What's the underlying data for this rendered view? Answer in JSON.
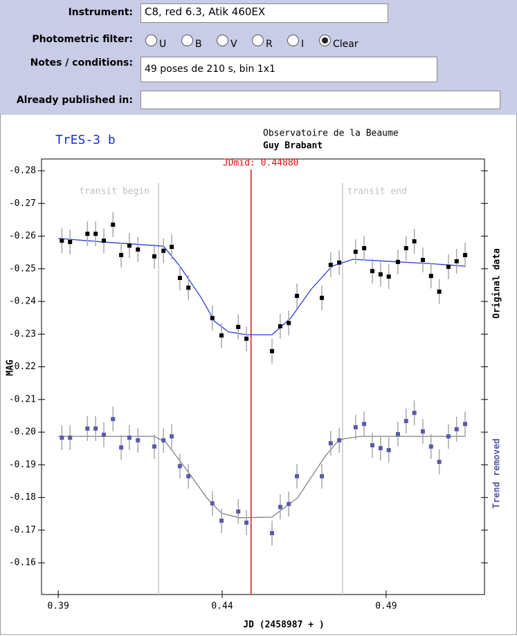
{
  "form": {
    "instrument": {
      "label": "Instrument:",
      "value": "C8, red 6.3, Atik 460EX"
    },
    "filter": {
      "label": "Photometric filter:",
      "options": [
        {
          "label": "U",
          "checked": false
        },
        {
          "label": "B",
          "checked": false
        },
        {
          "label": "V",
          "checked": false
        },
        {
          "label": "R",
          "checked": false
        },
        {
          "label": "I",
          "checked": false
        },
        {
          "label": "Clear",
          "checked": true
        }
      ]
    },
    "notes": {
      "label": "Notes / conditions:",
      "value": "49 poses de 210 s, bin 1x1"
    },
    "published": {
      "label": "Already published in:"
    }
  },
  "chart_data": {
    "type": "scatter",
    "title": "TrES-3 b",
    "observatory": "Observatoire de la Beaume",
    "observer": "Guy Brabant",
    "xlabel": "JD (2458987 + )",
    "ylabel": "MAG",
    "xlim": [
      0.3849,
      0.52
    ],
    "xticks": [
      0.39,
      0.44,
      0.49
    ],
    "ylim": [
      -0.1503,
      -0.2836
    ],
    "yticks": [
      -0.28,
      -0.27,
      -0.26,
      -0.25,
      -0.24,
      -0.23,
      -0.22,
      -0.21,
      {
        "value": -0.2,
        "label": "-0.20"
      },
      -0.19,
      -0.18,
      -0.17,
      -0.16
    ],
    "transit_begin": {
      "value": 0.4206,
      "label": "transit begin"
    },
    "transit_end": {
      "value": 0.4767,
      "label": "transit end"
    },
    "jdmid": {
      "value": 0.4488,
      "label": "JDmid: 0.44880",
      "color": "#e01010"
    },
    "x": [
      0.3911,
      0.3936,
      0.3989,
      0.4014,
      0.4039,
      0.4067,
      0.4092,
      0.4117,
      0.4143,
      0.4193,
      0.4221,
      0.4246,
      0.4271,
      0.4297,
      0.437,
      0.4398,
      0.4449,
      0.4474,
      0.4552,
      0.4577,
      0.4603,
      0.4628,
      0.4704,
      0.4731,
      0.4757,
      0.4807,
      0.4833,
      0.4858,
      0.4883,
      0.4908,
      0.4936,
      0.4961,
      0.4986,
      0.5012,
      0.5037,
      0.5062,
      0.509,
      0.5115,
      0.5141
    ],
    "series": [
      {
        "name": "Original data",
        "color": "#000000",
        "error": 0.0038,
        "values": [
          -0.2586,
          -0.2582,
          -0.2607,
          -0.2607,
          -0.2586,
          -0.2635,
          -0.2542,
          -0.2571,
          -0.2559,
          -0.2538,
          -0.2555,
          -0.2567,
          -0.2472,
          -0.2442,
          -0.2349,
          -0.2296,
          -0.2322,
          -0.2286,
          -0.2248,
          -0.2324,
          -0.2334,
          -0.2417,
          -0.2411,
          -0.2512,
          -0.2519,
          -0.2552,
          -0.2563,
          -0.2493,
          -0.2483,
          -0.2476,
          -0.2521,
          -0.2563,
          -0.2584,
          -0.2527,
          -0.2478,
          -0.243,
          -0.2506,
          -0.2523,
          -0.2542
        ],
        "fit": {
          "color": "#2a3bd8",
          "x": [
            0.39,
            0.4039,
            0.4221,
            0.4271,
            0.4335,
            0.4377,
            0.4419,
            0.4474,
            0.4552,
            0.4609,
            0.4672,
            0.4735,
            0.4799,
            0.4904,
            0.5031,
            0.5141
          ],
          "values": [
            -0.2593,
            -0.2582,
            -0.2569,
            -0.2508,
            -0.2413,
            -0.2339,
            -0.2307,
            -0.2298,
            -0.2298,
            -0.2349,
            -0.2438,
            -0.2508,
            -0.2529,
            -0.2523,
            -0.2516,
            -0.2508
          ]
        }
      },
      {
        "name": "Trend removed",
        "color": "#5a5aa8",
        "error": 0.0038,
        "values": [
          -0.1983,
          -0.1983,
          -0.2011,
          -0.2011,
          -0.1992,
          -0.204,
          -0.1953,
          -0.1983,
          -0.1975,
          -0.1956,
          -0.1975,
          -0.1987,
          -0.1896,
          -0.1865,
          -0.1782,
          -0.1729,
          -0.1757,
          -0.1723,
          -0.1691,
          -0.1771,
          -0.178,
          -0.1865,
          -0.1865,
          -0.1966,
          -0.1975,
          -0.2015,
          -0.2025,
          -0.196,
          -0.1951,
          -0.1945,
          -0.1994,
          -0.2034,
          -0.2059,
          -0.2002,
          -0.1956,
          -0.1909,
          -0.1987,
          -0.2009,
          -0.2025
        ],
        "fit": {
          "color": "#808080",
          "x": [
            0.39,
            0.4193,
            0.4229,
            0.4292,
            0.4356,
            0.4398,
            0.4451,
            0.4552,
            0.463,
            0.4714,
            0.4757,
            0.482,
            0.5141
          ],
          "values": [
            -0.1987,
            -0.1987,
            -0.1968,
            -0.1884,
            -0.1795,
            -0.1752,
            -0.1738,
            -0.174,
            -0.1799,
            -0.1926,
            -0.1977,
            -0.1987,
            -0.1987
          ]
        }
      }
    ]
  }
}
